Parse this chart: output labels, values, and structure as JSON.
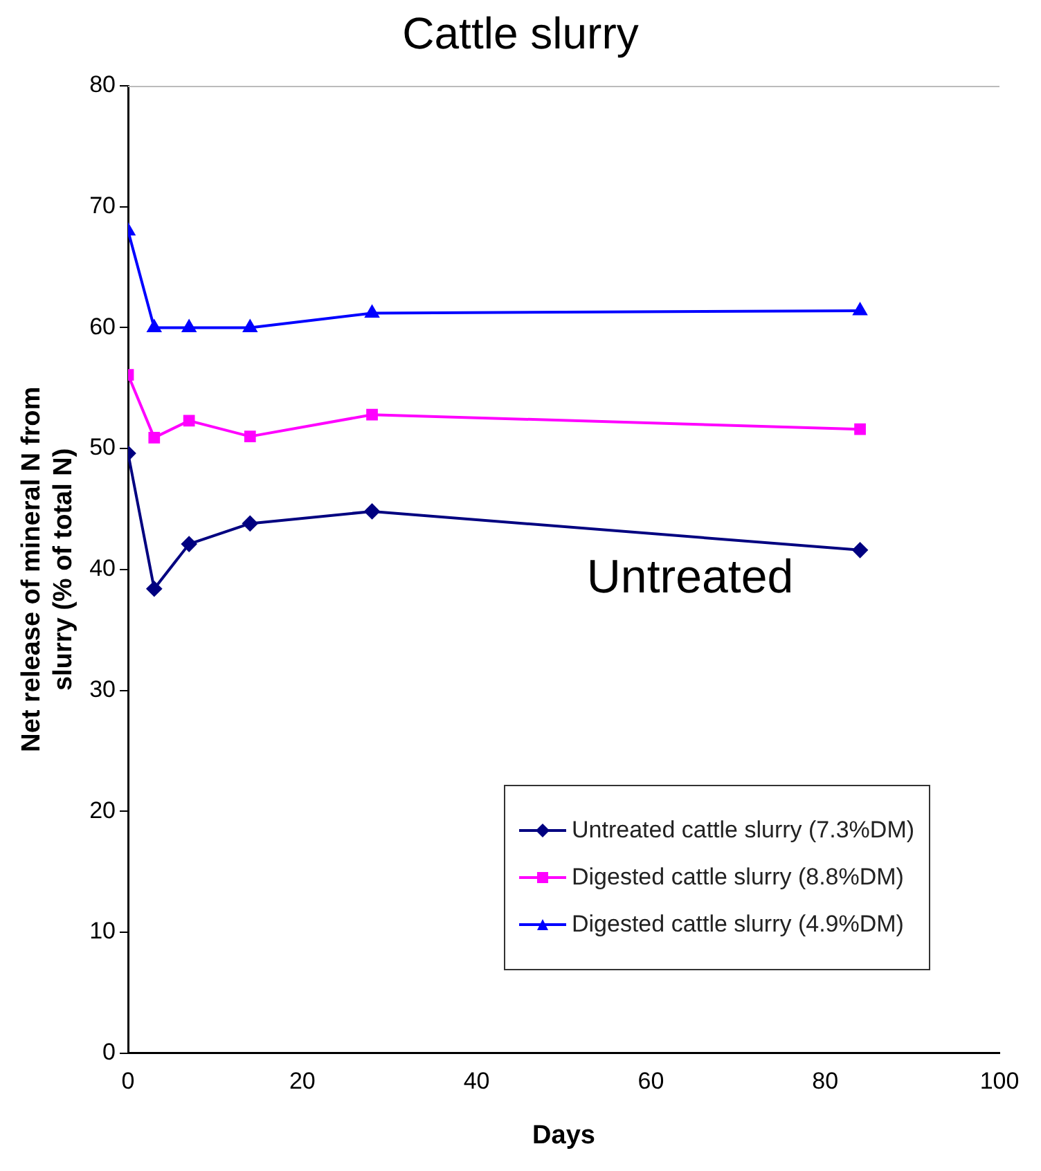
{
  "chart_data": {
    "type": "line",
    "title": "Cattle slurry",
    "xlabel": "Days",
    "ylabel": "Net release of mineral N from slurry (% of total N)",
    "x": [
      0,
      3,
      7,
      14,
      28,
      84
    ],
    "series": [
      {
        "name": "Untreated cattle slurry (7.3%DM)",
        "color": "#000080",
        "marker": "diamond",
        "values": [
          49.6,
          38.4,
          42.1,
          43.8,
          44.8,
          41.6
        ]
      },
      {
        "name": "Digested cattle slurry (8.8%DM)",
        "color": "#ff00ff",
        "marker": "square",
        "values": [
          56.1,
          50.9,
          52.3,
          51.0,
          52.8,
          51.6
        ]
      },
      {
        "name": "Digested cattle slurry (4.9%DM)",
        "color": "#0000ff",
        "marker": "triangle",
        "values": [
          68.0,
          60.0,
          60.0,
          60.0,
          61.2,
          61.4
        ]
      }
    ],
    "xlim": [
      0,
      100
    ],
    "xticks": [
      0,
      20,
      40,
      60,
      80,
      100
    ],
    "ylim": [
      0,
      80
    ],
    "yticks": [
      0,
      10,
      20,
      30,
      40,
      50,
      60,
      70,
      80
    ],
    "grid": false,
    "legend": "bottom right",
    "line_style": "solid",
    "annotations": [
      "Untreated"
    ]
  }
}
